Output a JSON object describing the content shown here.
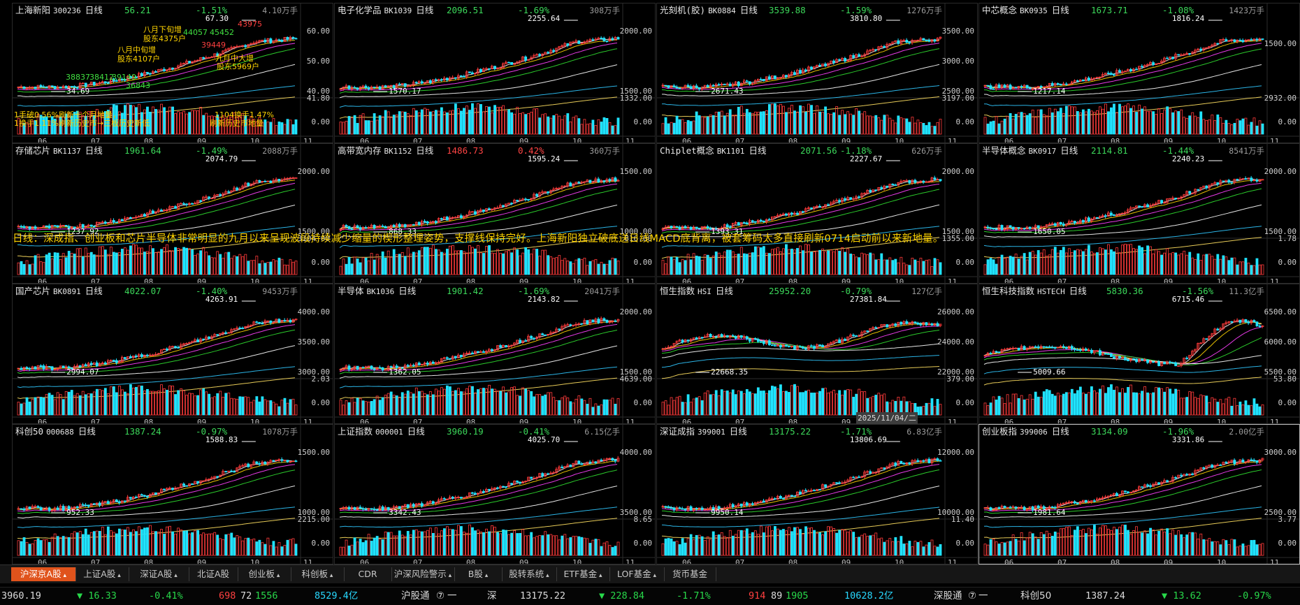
{
  "colors": {
    "up": "#ff3b3b",
    "down": "#21e3ff",
    "ma5": "#ffffff",
    "ma10": "#ffd400",
    "ma20": "#ff40ff",
    "ma30": "#30e030",
    "ma60": "#ffffff",
    "ma120": "#30c8ff",
    "ma250": "#ffe060",
    "accent": "#e0531c"
  },
  "panels": [
    {
      "name": "上海新阳",
      "code": "300236",
      "period": "日线",
      "price": "56.21",
      "change": "-1.51%",
      "vol": "4.10万手",
      "hi": "67.30",
      "lo": "34.69",
      "yl": [
        "60.00",
        "50.00",
        "40.00"
      ],
      "vl": [
        "41.80",
        "0.00"
      ],
      "months": [
        "06",
        "07",
        "08",
        "09",
        "10",
        "11"
      ],
      "chg_down": true,
      "price_down": true
    },
    {
      "name": "电子化学品",
      "code": "BK1039",
      "period": "日线",
      "price": "2096.51",
      "change": "-1.69%",
      "vol": "308万手",
      "hi": "2255.64",
      "lo": "1570.17",
      "yl": [
        "2000.00",
        "1500.00"
      ],
      "vl": [
        "1332.00",
        "0.00"
      ],
      "months": [
        "06",
        "07",
        "08",
        "09",
        "10",
        "11"
      ],
      "chg_down": true,
      "price_down": true
    },
    {
      "name": "光刻机(胶)",
      "code": "BK0884",
      "period": "日线",
      "price": "3539.88",
      "change": "-1.59%",
      "vol": "1276万手",
      "hi": "3810.80",
      "lo": "2671.43",
      "yl": [
        "3500.00",
        "3000.00",
        "2500.00"
      ],
      "vl": [
        "3197.00",
        "0.00"
      ],
      "months": [
        "06",
        "07",
        "08",
        "09",
        "10",
        "11"
      ],
      "chg_down": true,
      "price_down": true
    },
    {
      "name": "中芯概念",
      "code": "BK0935",
      "period": "日线",
      "price": "1673.71",
      "change": "-1.08%",
      "vol": "1423万手",
      "hi": "1816.24",
      "lo": "1217.14",
      "yl": [
        "1500.00"
      ],
      "vl": [
        "2932.00",
        "0.00"
      ],
      "months": [
        "06",
        "07",
        "08",
        "09",
        "10",
        "11"
      ],
      "chg_down": true,
      "price_down": true
    },
    {
      "name": "存储芯片",
      "code": "BK1137",
      "period": "日线",
      "price": "1961.64",
      "change": "-1.49%",
      "vol": "2088万手",
      "hi": "2074.79",
      "lo": "1237.92",
      "yl": [
        "2000.00",
        "1500.00"
      ],
      "vl": [
        "3104.00",
        "0.00"
      ],
      "months": [
        "06",
        "07",
        "08",
        "09",
        "10",
        "11"
      ],
      "chg_down": true,
      "price_down": true
    },
    {
      "name": "高带宽内存",
      "code": "BK1152",
      "period": "日线",
      "price": "1486.73",
      "change": "0.42%",
      "vol": "360万手",
      "hi": "1595.24",
      "lo": "868.33",
      "yl": [
        "1500.00",
        "1000.00"
      ],
      "vl": [
        "816.00",
        "0.00"
      ],
      "months": [
        "06",
        "07",
        "08",
        "09",
        "10",
        "11"
      ],
      "chg_down": false,
      "price_down": false
    },
    {
      "name": "Chiplet概念",
      "code": "BK1101",
      "period": "日线",
      "price": "2071.56",
      "change": "-1.18%",
      "vol": "626万手",
      "hi": "2227.67",
      "lo": "1393.31",
      "yl": [
        "2000.00",
        "1500.00"
      ],
      "vl": [
        "1355.00",
        "0.00"
      ],
      "months": [
        "06",
        "07",
        "08",
        "09",
        "10",
        "11"
      ],
      "chg_down": true,
      "price_down": true
    },
    {
      "name": "半导体概念",
      "code": "BK0917",
      "period": "日线",
      "price": "2114.81",
      "change": "-1.44%",
      "vol": "8541万手",
      "hi": "2240.23",
      "lo": "1650.05",
      "yl": [
        "2000.00",
        "1500.00"
      ],
      "vl": [
        "1.78",
        "0.00"
      ],
      "months": [
        "06",
        "07",
        "08",
        "09",
        "10",
        "11"
      ],
      "chg_down": true,
      "price_down": true
    },
    {
      "name": "国产芯片",
      "code": "BK0891",
      "period": "日线",
      "price": "4022.07",
      "change": "-1.40%",
      "vol": "9453万手",
      "hi": "4263.91",
      "lo": "2994.07",
      "yl": [
        "4000.00",
        "3500.00",
        "3000.00"
      ],
      "vl": [
        "2.03",
        "0.00"
      ],
      "months": [
        "06",
        "07",
        "08",
        "09",
        "10",
        "11"
      ],
      "chg_down": true,
      "price_down": true
    },
    {
      "name": "半导体",
      "code": "BK1036",
      "period": "日线",
      "price": "1901.42",
      "change": "-1.69%",
      "vol": "2041万手",
      "hi": "2143.82",
      "lo": "1362.05",
      "yl": [
        "2000.00",
        "1500.00"
      ],
      "vl": [
        "4639.00",
        "0.00"
      ],
      "months": [
        "06",
        "07",
        "08",
        "09",
        "10",
        "11"
      ],
      "chg_down": true,
      "price_down": true
    },
    {
      "name": "恒生指数",
      "code": "HSI",
      "period": "日线",
      "price": "25952.20",
      "change": "-0.79%",
      "vol": "127亿手",
      "hi": "27381.84",
      "lo": "22668.35",
      "yl": [
        "26000.00",
        "24000.00",
        "22000.00"
      ],
      "vl": [
        "379.00",
        "0.00"
      ],
      "months": [
        "06",
        "07",
        "08",
        "09",
        "10",
        "11"
      ],
      "chg_down": true,
      "price_down": true
    },
    {
      "name": "恒生科技指数",
      "code": "HSTECH",
      "period": "日线",
      "price": "5830.36",
      "change": "-1.56%",
      "vol": "11.3亿手",
      "hi": "6715.46",
      "lo": "5009.66",
      "yl": [
        "6500.00",
        "6000.00",
        "5500.00"
      ],
      "vl": [
        "53.80",
        "0.00"
      ],
      "months": [
        "06",
        "07",
        "08",
        "09",
        "10",
        "11"
      ],
      "chg_down": true,
      "price_down": true
    },
    {
      "name": "科创50",
      "code": "000688",
      "period": "日线",
      "price": "1387.24",
      "change": "-0.97%",
      "vol": "1078万手",
      "hi": "1588.83",
      "lo": "952.33",
      "yl": [
        "1500.00",
        "1000.00"
      ],
      "vl": [
        "2215.00",
        "0.00"
      ],
      "months": [
        "06",
        "07",
        "08",
        "09",
        "10",
        "11"
      ],
      "chg_down": true,
      "price_down": true
    },
    {
      "name": "上证指数",
      "code": "000001",
      "period": "日线",
      "price": "3960.19",
      "change": "-0.41%",
      "vol": "6.15亿手",
      "hi": "4025.70",
      "lo": "3342.43",
      "yl": [
        "4000.00",
        "3500.00"
      ],
      "vl": [
        "8.65",
        "0.00"
      ],
      "months": [
        "06",
        "07",
        "08",
        "09",
        "10",
        "11"
      ],
      "chg_down": true,
      "price_down": true
    },
    {
      "name": "深证成指",
      "code": "399001",
      "period": "日线",
      "price": "13175.22",
      "change": "-1.71%",
      "vol": "6.83亿手",
      "hi": "13806.69",
      "lo": "9950.14",
      "yl": [
        "12000.00",
        "10000.00"
      ],
      "vl": [
        "11.40",
        "0.00"
      ],
      "months": [
        "06",
        "07",
        "08",
        "09",
        "10",
        "11"
      ],
      "chg_down": true,
      "price_down": true
    },
    {
      "name": "创业板指",
      "code": "399006",
      "period": "日线",
      "price": "3134.09",
      "change": "-1.96%",
      "vol": "2.00亿手",
      "hi": "3331.86",
      "lo": "1981.64",
      "yl": [
        "3000.00",
        "2500.00"
      ],
      "vl": [
        "3.77",
        "0.00"
      ],
      "months": [
        "06",
        "07",
        "08",
        "09",
        "10",
        "11"
      ],
      "chg_down": true,
      "price_down": true
    }
  ],
  "note": "日线：深成指、创业板和芯片半导体非常明显的九月以来呈现波段持续减少缩量的楔形整理姿势，支撑线保持完好。上海新阳独立破底送日线MACD底背离，被套筹码太多直接刷新0714启动前以来新地量。",
  "annotations": {
    "a1": "八月下旬增",
    "a2": "股东4375户",
    "a3": "八月中旬增",
    "a4": "股东4107户",
    "a5": "九月中大增",
    "a6": "股东5969户",
    "b1": "1手破0.56%刷新十个月地量，",
    "b2": "1换手1.11%刷新历史市→三板历史新低",
    "b3": "1104换手1.47%",
    "b4": "刷新历史市地量",
    "n1": "38837",
    "n2": "38412",
    "n3": "39149",
    "n4": "44057",
    "n5": "45452",
    "n6": "39449",
    "n7": "36843",
    "n8": "43975"
  },
  "date_tip": "2025/11/04/二",
  "tabs": [
    {
      "label": "沪深京A股",
      "arrow": true,
      "active": true
    },
    {
      "label": "上证A股",
      "arrow": true
    },
    {
      "label": "深证A股",
      "arrow": true
    },
    {
      "label": "北证A股",
      "arrow": false
    },
    {
      "label": "创业板",
      "arrow": true
    },
    {
      "label": "科创板",
      "arrow": true
    },
    {
      "label": "CDR",
      "arrow": false
    },
    {
      "label": "沪深风险警示",
      "arrow": true
    },
    {
      "label": "B股",
      "arrow": true
    },
    {
      "label": "股转系统",
      "arrow": true
    },
    {
      "label": "ETF基金",
      "arrow": true
    },
    {
      "label": "LOF基金",
      "arrow": true
    },
    {
      "label": "货币基金",
      "arrow": false
    }
  ],
  "status": {
    "sh_index": "3960.19",
    "sh_delta": "▼ 16.33",
    "sh_pct": "-0.41%",
    "sh_up": "698",
    "sh_flat": "72",
    "sh_down": "1556",
    "sh_amt": "8529.4亿",
    "hgt": "沪股通",
    "hgt_val": "一",
    "sz_label": "深",
    "sz_index": "13175.22",
    "sz_delta": "▼ 228.84",
    "sz_pct": "-1.71%",
    "sz_up": "914",
    "sz_flat": "89",
    "sz_down": "1905",
    "sz_amt": "10628.2亿",
    "sgt": "深股通",
    "sgt_val": "一",
    "kc_label": "科创50",
    "kc_index": "1387.24",
    "kc_delta": "▼ 13.62",
    "kc_pct": "-0.97%"
  }
}
